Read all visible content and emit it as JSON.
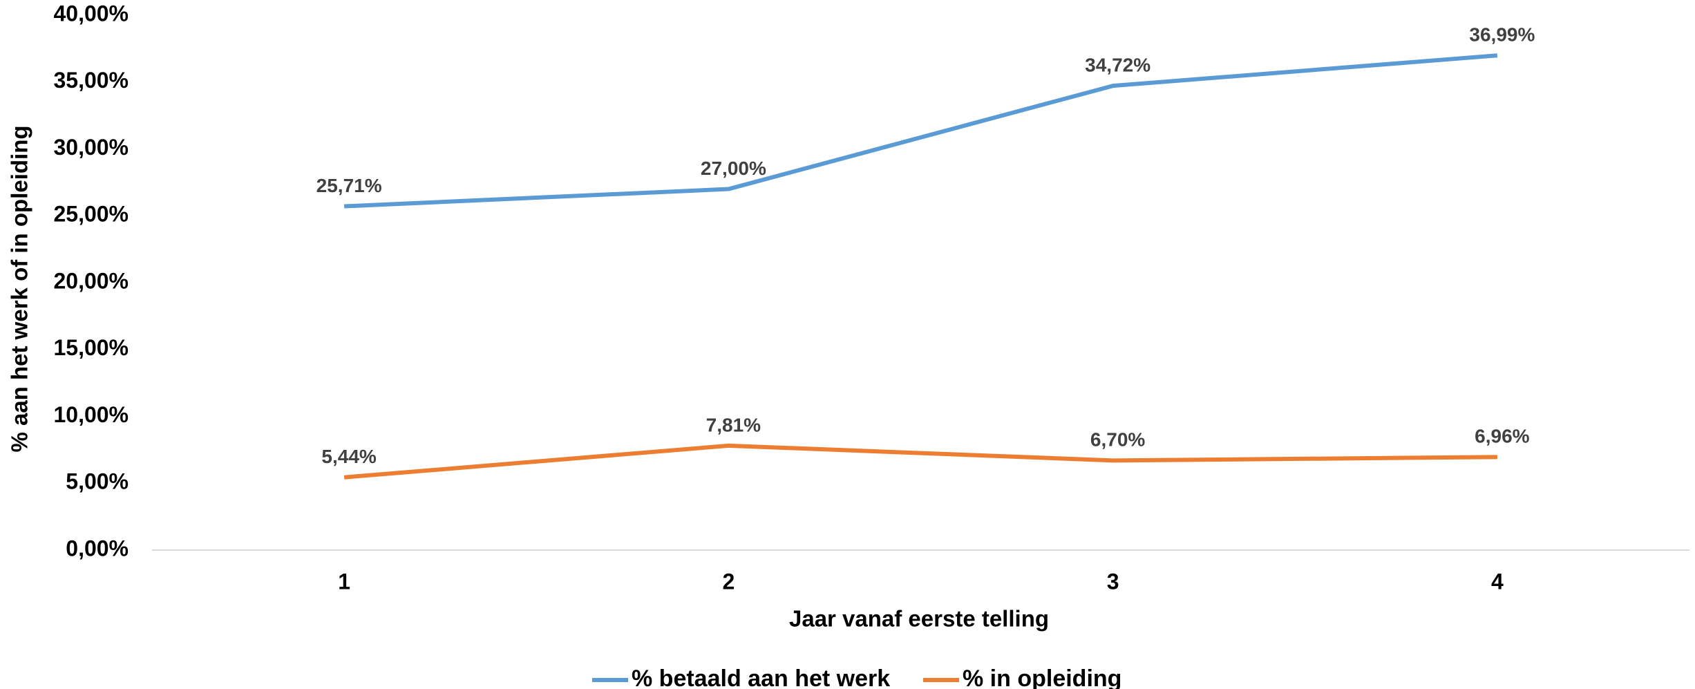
{
  "chart_data": {
    "type": "line",
    "categories": [
      "1",
      "2",
      "3",
      "4"
    ],
    "series": [
      {
        "name": "% betaald aan het werk",
        "color": "#5b9bd5",
        "values": [
          25.71,
          27.0,
          34.72,
          36.99
        ],
        "value_labels": [
          "25,71%",
          "27,00%",
          "34,72%",
          "36,99%"
        ]
      },
      {
        "name": "% in opleiding",
        "color": "#ed7d31",
        "values": [
          5.44,
          7.81,
          6.7,
          6.96
        ],
        "value_labels": [
          "5,44%",
          "7,81%",
          "6,70%",
          "6,96%"
        ]
      }
    ],
    "xlabel": "Jaar vanaf eerste telling",
    "ylabel": "% aan het werk of in opleiding",
    "ylim": [
      0,
      40
    ],
    "yticks": [
      {
        "value": 0,
        "label": "0,00%"
      },
      {
        "value": 5,
        "label": "5,00%"
      },
      {
        "value": 10,
        "label": "10,00%"
      },
      {
        "value": 15,
        "label": "15,00%"
      },
      {
        "value": 20,
        "label": "20,00%"
      },
      {
        "value": 25,
        "label": "25,00%"
      },
      {
        "value": 30,
        "label": "30,00%"
      },
      {
        "value": 35,
        "label": "35,00%"
      },
      {
        "value": 40,
        "label": "40,00%"
      }
    ],
    "grid": false,
    "legend": "bottom"
  }
}
